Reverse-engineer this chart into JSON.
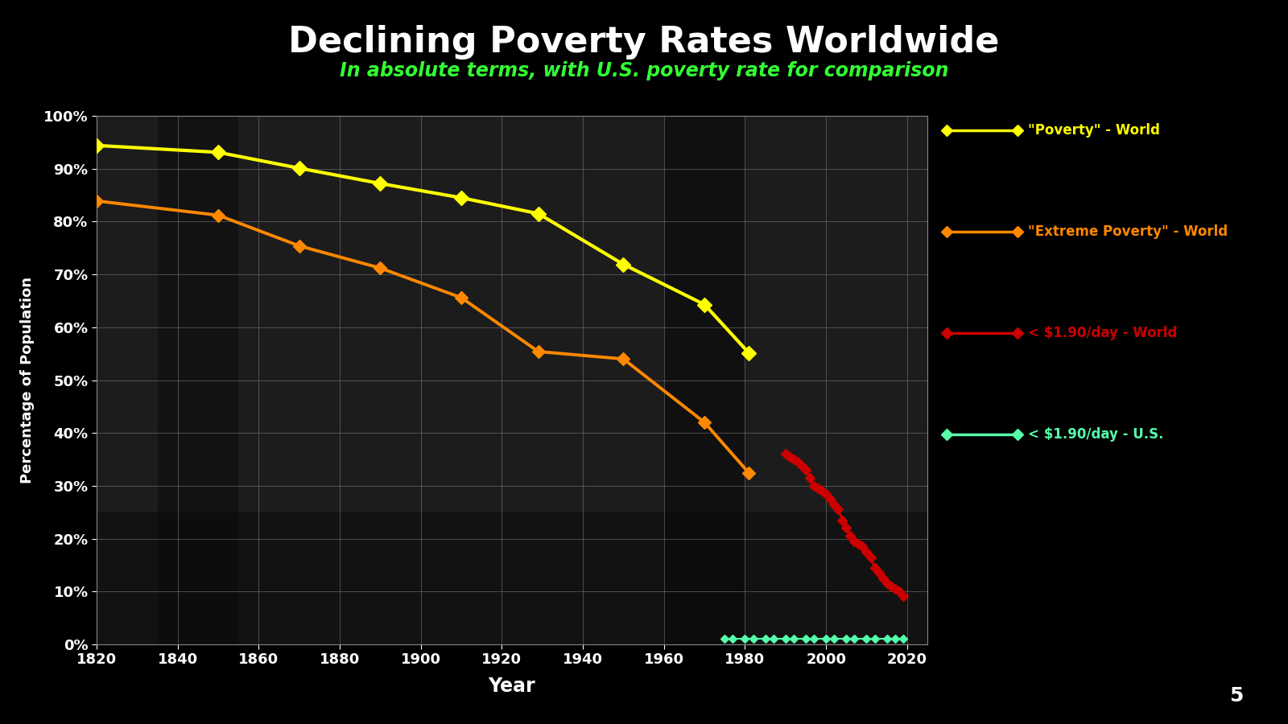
{
  "title": "Declining Poverty Rates Worldwide",
  "subtitle": "In absolute terms, with U.S. poverty rate for comparison",
  "xlabel": "Year",
  "ylabel": "Percentage of Population",
  "background_color": "#000000",
  "title_color": "#ffffff",
  "subtitle_color": "#33ff33",
  "axis_label_color": "#ffffff",
  "tick_label_color": "#ffffff",
  "grid_color": "#888888",
  "page_number": "5",
  "poverty_world_years": [
    1820,
    1850,
    1870,
    1890,
    1910,
    1929,
    1950,
    1970,
    1981
  ],
  "poverty_world_values": [
    94.4,
    93.1,
    90.1,
    87.2,
    84.5,
    81.5,
    71.9,
    64.3,
    55.1
  ],
  "extreme_poverty_world_years": [
    1820,
    1850,
    1870,
    1890,
    1910,
    1929,
    1950,
    1970,
    1981
  ],
  "extreme_poverty_world_values": [
    83.9,
    81.2,
    75.4,
    71.2,
    65.6,
    55.4,
    54.0,
    42.0,
    32.4
  ],
  "dollar190_world_years": [
    1990,
    1991,
    1992,
    1993,
    1994,
    1995,
    1996,
    1997,
    1998,
    1999,
    2000,
    2001,
    2002,
    2003,
    2004,
    2005,
    2006,
    2007,
    2008,
    2009,
    2010,
    2011,
    2012,
    2013,
    2014,
    2015,
    2016,
    2017,
    2018,
    2019
  ],
  "dollar190_world_values": [
    36.0,
    35.5,
    35.0,
    34.5,
    33.8,
    33.0,
    31.5,
    30.0,
    29.5,
    29.0,
    28.5,
    27.5,
    26.5,
    25.5,
    23.5,
    22.0,
    20.5,
    19.5,
    19.0,
    18.5,
    17.5,
    16.5,
    14.5,
    13.5,
    12.5,
    11.5,
    11.0,
    10.5,
    10.0,
    9.2
  ],
  "dollar190_us_years": [
    1975,
    1977,
    1980,
    1982,
    1985,
    1987,
    1990,
    1992,
    1995,
    1997,
    2000,
    2002,
    2005,
    2007,
    2010,
    2012,
    2015,
    2017,
    2019
  ],
  "dollar190_us_values": [
    1.0,
    1.0,
    1.0,
    1.0,
    1.0,
    1.0,
    1.0,
    1.0,
    1.0,
    1.0,
    1.0,
    1.0,
    1.0,
    1.0,
    1.0,
    1.0,
    1.0,
    1.0,
    1.0
  ],
  "yellow_color": "#ffff00",
  "orange_color": "#ff8800",
  "red_color": "#cc0000",
  "cyan_color": "#55ffaa",
  "xlim": [
    1820,
    2025
  ],
  "ylim": [
    0,
    100
  ],
  "xticks": [
    1820,
    1840,
    1860,
    1880,
    1900,
    1920,
    1940,
    1960,
    1980,
    2000,
    2020
  ],
  "yticks": [
    0,
    10,
    20,
    30,
    40,
    50,
    60,
    70,
    80,
    90,
    100
  ],
  "ytick_labels": [
    "0%",
    "10%",
    "20%",
    "30%",
    "40%",
    "50%",
    "60%",
    "70%",
    "80%",
    "90%",
    "100%"
  ],
  "legend_items": [
    {
      "color": "#ffff00",
      "label": "\"Poverty\" - World"
    },
    {
      "color": "#ff8800",
      "label": "\"Extreme Poverty\" - World"
    },
    {
      "color": "#cc0000",
      "label": "< $1.90/day - World"
    },
    {
      "color": "#55ffaa",
      "label": "< $1.90/day - U.S."
    }
  ]
}
